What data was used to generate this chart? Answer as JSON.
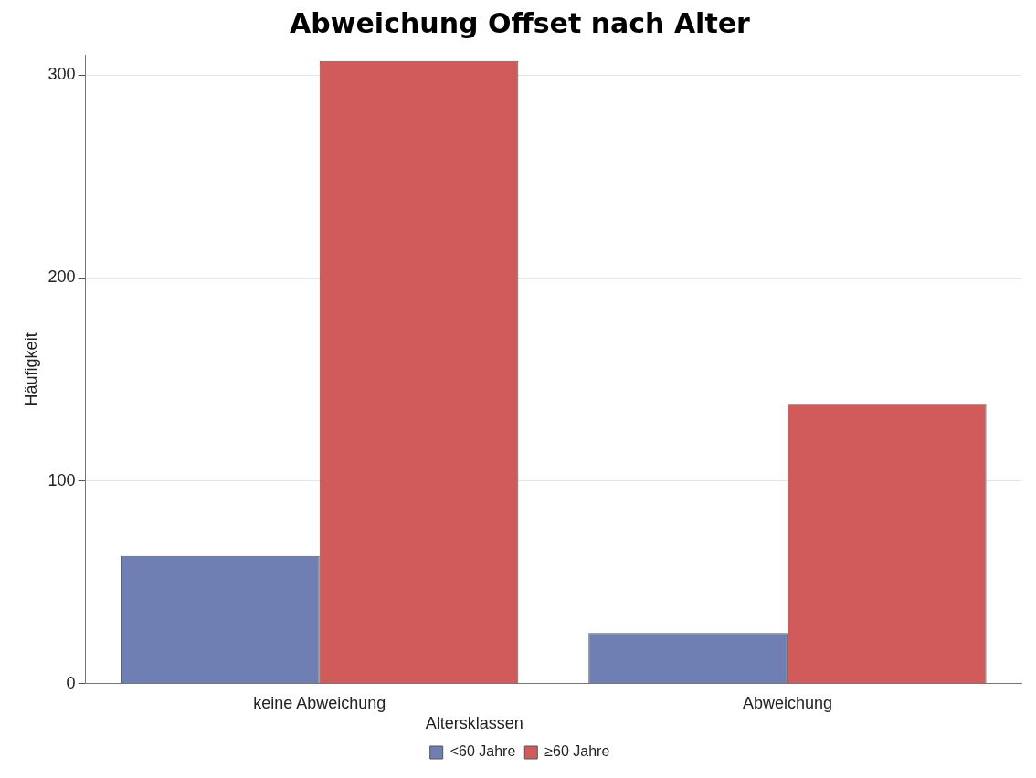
{
  "chart_data": {
    "type": "bar",
    "title": "Abweichung Offset nach Alter",
    "ylabel": "Häufigkeit",
    "categories": [
      "keine Abweichung",
      "Abweichung"
    ],
    "series": [
      {
        "name": "<60 Jahre",
        "color": "#6f7eb3",
        "values": [
          63,
          25
        ]
      },
      {
        "name": "≥60 Jahre",
        "color": "#d05b5a",
        "values": [
          307,
          138
        ]
      }
    ],
    "legend_title": "Altersklassen",
    "ylim": [
      0,
      310
    ],
    "yticks": [
      0,
      100,
      200,
      300
    ],
    "grid": "y",
    "legend": "bottom"
  }
}
